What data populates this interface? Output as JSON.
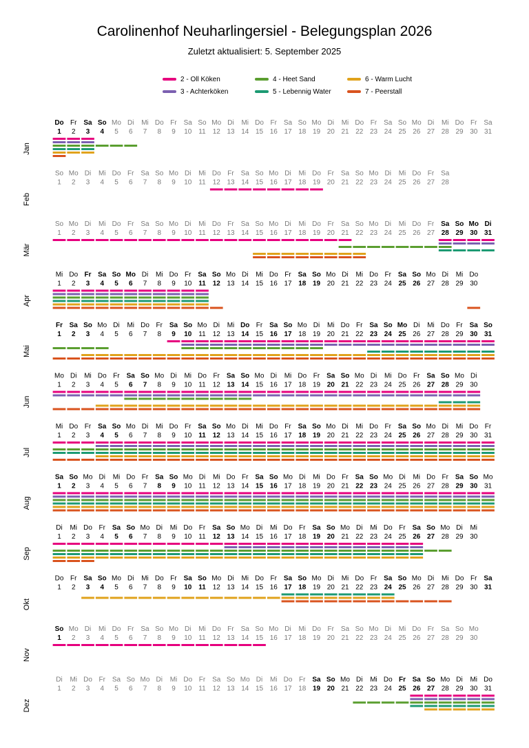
{
  "title": "Carolinenhof Neuharlingersiel - Belegungsplan 2026",
  "subtitle": "Zuletzt aktualisiert:  5. September 2025",
  "chart_data": {
    "type": "timeline",
    "year": 2026,
    "legend": [
      {
        "name": "2 - Oll Köken",
        "color": "#e6007e"
      },
      {
        "name": "3 - Achterköken",
        "color": "#7b5fb0"
      },
      {
        "name": "4 - Heet Sand",
        "color": "#5a9e2f"
      },
      {
        "name": "5 - Lebennig Water",
        "color": "#1c9a73"
      },
      {
        "name": "6 - Warm Lucht",
        "color": "#e0a21b"
      },
      {
        "name": "7 - Peerstall",
        "color": "#d9531e"
      }
    ],
    "months": [
      {
        "label": "Jan",
        "days": 31,
        "first_weekday": 3,
        "bold": [
          1,
          3,
          4
        ],
        "gray": [
          5,
          6,
          7,
          8,
          9,
          10,
          11,
          12,
          13,
          14,
          15,
          16,
          17,
          18,
          19,
          20,
          21,
          22,
          23,
          24,
          25,
          26,
          27,
          28,
          29,
          30,
          31
        ],
        "bars": [
          {
            "room": 0,
            "row": 0,
            "from": 1,
            "to": 3
          },
          {
            "room": 1,
            "row": 1,
            "from": 1,
            "to": 3
          },
          {
            "room": 2,
            "row": 2,
            "from": 1,
            "to": 6
          },
          {
            "room": 3,
            "row": 3,
            "from": 1,
            "to": 3
          },
          {
            "room": 4,
            "row": 4,
            "from": 1,
            "to": 3
          },
          {
            "room": 5,
            "row": 5,
            "from": 1,
            "to": 1
          }
        ]
      },
      {
        "label": "Feb",
        "days": 28,
        "first_weekday": 6,
        "bold": [],
        "gray": [
          1,
          2,
          3,
          4,
          5,
          6,
          7,
          8,
          9,
          10,
          11,
          12,
          13,
          14,
          15,
          16,
          17,
          18,
          19,
          20,
          21,
          22,
          23,
          24,
          25,
          26,
          27,
          28
        ],
        "bars": [
          {
            "room": 0,
            "row": 0,
            "from": 12,
            "to": 19
          }
        ]
      },
      {
        "label": "Mär",
        "days": 31,
        "first_weekday": 6,
        "bold": [
          28,
          29,
          30,
          31
        ],
        "gray": [
          1,
          2,
          3,
          4,
          5,
          6,
          7,
          8,
          9,
          10,
          11,
          12,
          13,
          14,
          15,
          16,
          17,
          18,
          19,
          20,
          21,
          22,
          23,
          24,
          25,
          26,
          27
        ],
        "bars": [
          {
            "room": 0,
            "row": 0,
            "from": 1,
            "to": 21
          },
          {
            "room": 0,
            "row": 0,
            "from": 28,
            "to": 31
          },
          {
            "room": 1,
            "row": 1,
            "from": 28,
            "to": 31
          },
          {
            "room": 2,
            "row": 2,
            "from": 21,
            "to": 28
          },
          {
            "room": 3,
            "row": 3,
            "from": 28,
            "to": 31
          },
          {
            "room": 4,
            "row": 4,
            "from": 15,
            "to": 22
          },
          {
            "room": 5,
            "row": 5,
            "from": 15,
            "to": 22
          }
        ]
      },
      {
        "label": "Apr",
        "days": 30,
        "first_weekday": 2,
        "bold": [
          3,
          4,
          5,
          6,
          11,
          12,
          18,
          19,
          25,
          26
        ],
        "gray": [],
        "bars": [
          {
            "room": 0,
            "row": 0,
            "from": 1,
            "to": 11
          },
          {
            "room": 1,
            "row": 1,
            "from": 1,
            "to": 11
          },
          {
            "room": 2,
            "row": 2,
            "from": 1,
            "to": 11
          },
          {
            "room": 3,
            "row": 3,
            "from": 1,
            "to": 11
          },
          {
            "room": 4,
            "row": 4,
            "from": 1,
            "to": 11
          },
          {
            "room": 5,
            "row": 5,
            "from": 1,
            "to": 12
          },
          {
            "room": 5,
            "row": 5,
            "from": 30,
            "to": 30
          }
        ]
      },
      {
        "label": "Mai",
        "days": 31,
        "first_weekday": 4,
        "bold": [
          1,
          2,
          3,
          9,
          10,
          14,
          16,
          17,
          23,
          24,
          25,
          30,
          31
        ],
        "gray": [],
        "bars": [
          {
            "room": 0,
            "row": 0,
            "from": 9,
            "to": 31
          },
          {
            "room": 1,
            "row": 1,
            "from": 10,
            "to": 31
          },
          {
            "room": 2,
            "row": 2,
            "from": 1,
            "to": 4
          },
          {
            "room": 2,
            "row": 2,
            "from": 10,
            "to": 19
          },
          {
            "room": 3,
            "row": 3,
            "from": 23,
            "to": 31
          },
          {
            "room": 4,
            "row": 4,
            "from": 3,
            "to": 31
          },
          {
            "room": 5,
            "row": 5,
            "from": 1,
            "to": 31
          }
        ]
      },
      {
        "label": "Jun",
        "days": 30,
        "first_weekday": 0,
        "bold": [
          6,
          7,
          13,
          14,
          20,
          21,
          27,
          28
        ],
        "gray": [],
        "bars": [
          {
            "room": 0,
            "row": 0,
            "from": 1,
            "to": 30
          },
          {
            "room": 1,
            "row": 1,
            "from": 1,
            "to": 30
          },
          {
            "room": 2,
            "row": 2,
            "from": 6,
            "to": 14
          },
          {
            "room": 3,
            "row": 3,
            "from": 28,
            "to": 30
          },
          {
            "room": 4,
            "row": 4,
            "from": 4,
            "to": 30
          },
          {
            "room": 5,
            "row": 5,
            "from": 1,
            "to": 30
          }
        ]
      },
      {
        "label": "Jul",
        "days": 31,
        "first_weekday": 2,
        "bold": [
          4,
          5,
          11,
          12,
          18,
          19,
          25,
          26
        ],
        "gray": [],
        "bars": [
          {
            "room": 0,
            "row": 0,
            "from": 1,
            "to": 31
          },
          {
            "room": 1,
            "row": 1,
            "from": 4,
            "to": 31
          },
          {
            "room": 2,
            "row": 2,
            "from": 1,
            "to": 31
          },
          {
            "room": 3,
            "row": 3,
            "from": 1,
            "to": 31
          },
          {
            "room": 4,
            "row": 4,
            "from": 4,
            "to": 31
          },
          {
            "room": 5,
            "row": 5,
            "from": 1,
            "to": 31
          }
        ]
      },
      {
        "label": "Aug",
        "days": 31,
        "first_weekday": 5,
        "bold": [
          1,
          2,
          8,
          9,
          15,
          16,
          22,
          23,
          29,
          30
        ],
        "gray": [],
        "bars": [
          {
            "room": 0,
            "row": 0,
            "from": 1,
            "to": 31
          },
          {
            "room": 1,
            "row": 1,
            "from": 1,
            "to": 31
          },
          {
            "room": 2,
            "row": 2,
            "from": 1,
            "to": 31
          },
          {
            "room": 3,
            "row": 3,
            "from": 1,
            "to": 31
          },
          {
            "room": 4,
            "row": 4,
            "from": 1,
            "to": 31
          },
          {
            "room": 5,
            "row": 5,
            "from": 1,
            "to": 31
          }
        ]
      },
      {
        "label": "Sep",
        "days": 30,
        "first_weekday": 1,
        "bold": [
          5,
          6,
          12,
          13,
          19,
          20,
          26,
          27
        ],
        "gray": [],
        "bars": [
          {
            "room": 0,
            "row": 0,
            "from": 1,
            "to": 26
          },
          {
            "room": 1,
            "row": 1,
            "from": 13,
            "to": 26
          },
          {
            "room": 2,
            "row": 2,
            "from": 1,
            "to": 28
          },
          {
            "room": 3,
            "row": 3,
            "from": 1,
            "to": 26
          },
          {
            "room": 4,
            "row": 4,
            "from": 1,
            "to": 26
          },
          {
            "room": 5,
            "row": 5,
            "from": 1,
            "to": 3
          }
        ]
      },
      {
        "label": "Okt",
        "days": 31,
        "first_weekday": 3,
        "bold": [
          3,
          4,
          10,
          11,
          17,
          18,
          24,
          25,
          31
        ],
        "gray": [],
        "bars": [
          {
            "room": 3,
            "row": 0,
            "from": 17,
            "to": 24
          },
          {
            "room": 4,
            "row": 1,
            "from": 3,
            "to": 24
          },
          {
            "room": 5,
            "row": 2,
            "from": 17,
            "to": 28
          }
        ]
      },
      {
        "label": "Nov",
        "days": 30,
        "first_weekday": 6,
        "bold": [
          1
        ],
        "gray": [
          2,
          3,
          4,
          5,
          6,
          7,
          8,
          9,
          10,
          11,
          12,
          13,
          14,
          15,
          16,
          17,
          18,
          19,
          20,
          21,
          22,
          23,
          24,
          25,
          26,
          27,
          28,
          29,
          30
        ],
        "bars": [
          {
            "room": 0,
            "row": 0,
            "from": 1,
            "to": 15
          }
        ]
      },
      {
        "label": "Dez",
        "days": 31,
        "first_weekday": 1,
        "bold": [
          19,
          20,
          25,
          26,
          27
        ],
        "gray": [
          1,
          2,
          3,
          4,
          5,
          6,
          7,
          8,
          9,
          10,
          11,
          12,
          13,
          14,
          15,
          16,
          17,
          18
        ],
        "bars": [
          {
            "room": 0,
            "row": 0,
            "from": 26,
            "to": 31
          },
          {
            "room": 1,
            "row": 1,
            "from": 26,
            "to": 31
          },
          {
            "room": 2,
            "row": 2,
            "from": 22,
            "to": 31
          },
          {
            "room": 3,
            "row": 3,
            "from": 26,
            "to": 31
          },
          {
            "room": 4,
            "row": 4,
            "from": 27,
            "to": 31
          }
        ]
      }
    ],
    "weekday_abbr": [
      "Mo",
      "Di",
      "Mi",
      "Do",
      "Fr",
      "Sa",
      "So"
    ]
  }
}
